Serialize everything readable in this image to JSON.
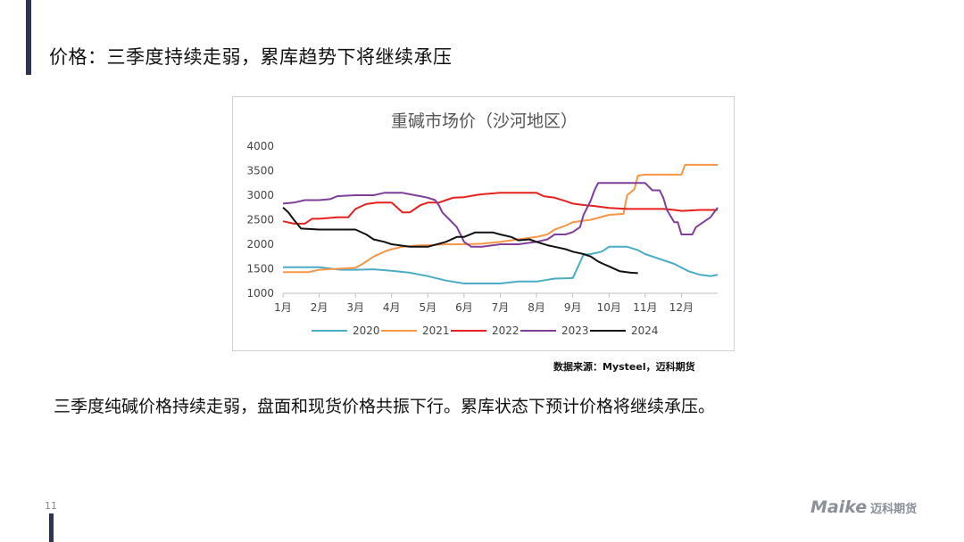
{
  "slide": {
    "title": "价格：三季度持续走弱，累库趋势下将继续承压",
    "body": "三季度纯碱价格持续走弱，盘面和现货价格共振下行。累库状态下预计价格将继续承压。",
    "source": "数据来源：Mysteel，迈科期货",
    "page_number": "11",
    "accent_color": "#2e3552"
  },
  "logo": {
    "word": "Maike",
    "chinese": "迈科期货",
    "icon": "maike-logo-icon"
  },
  "chart_data": {
    "type": "line",
    "title": "重碱市场价（沙河地区）",
    "x_ticks": [
      "1月",
      "2月",
      "3月",
      "4月",
      "5月",
      "6月",
      "7月",
      "8月",
      "9月",
      "10月",
      "11月",
      "12月"
    ],
    "y_ticks": [
      1000,
      1500,
      2000,
      2500,
      3000,
      3500,
      4000
    ],
    "ylim": [
      1000,
      4000
    ],
    "xlim": [
      1,
      13
    ],
    "grid": false,
    "legend_position": "bottom",
    "series": [
      {
        "name": "2020",
        "color": "#4bacc6",
        "points": [
          [
            1,
            1530
          ],
          [
            2,
            1530
          ],
          [
            2.6,
            1480
          ],
          [
            3,
            1480
          ],
          [
            3.5,
            1490
          ],
          [
            4,
            1460
          ],
          [
            4.5,
            1420
          ],
          [
            5,
            1350
          ],
          [
            5.5,
            1260
          ],
          [
            6,
            1200
          ],
          [
            6.5,
            1200
          ],
          [
            7,
            1200
          ],
          [
            7.5,
            1240
          ],
          [
            8,
            1240
          ],
          [
            8.5,
            1300
          ],
          [
            9,
            1310
          ],
          [
            9.3,
            1790
          ],
          [
            9.5,
            1800
          ],
          [
            9.8,
            1850
          ],
          [
            10,
            1950
          ],
          [
            10.5,
            1950
          ],
          [
            10.8,
            1880
          ],
          [
            11,
            1800
          ],
          [
            11.4,
            1700
          ],
          [
            11.8,
            1600
          ],
          [
            12.2,
            1450
          ],
          [
            12.5,
            1380
          ],
          [
            12.8,
            1350
          ],
          [
            13,
            1380
          ]
        ]
      },
      {
        "name": "2021",
        "color": "#f79646",
        "points": [
          [
            1,
            1430
          ],
          [
            1.7,
            1430
          ],
          [
            2,
            1480
          ],
          [
            2.5,
            1500
          ],
          [
            3,
            1520
          ],
          [
            3.2,
            1600
          ],
          [
            3.5,
            1750
          ],
          [
            3.8,
            1850
          ],
          [
            4,
            1900
          ],
          [
            4.3,
            1950
          ],
          [
            4.8,
            1980
          ],
          [
            5,
            1980
          ],
          [
            5.5,
            2000
          ],
          [
            6,
            2000
          ],
          [
            6.5,
            2010
          ],
          [
            7,
            2050
          ],
          [
            7.5,
            2100
          ],
          [
            8,
            2150
          ],
          [
            8.3,
            2200
          ],
          [
            8.5,
            2300
          ],
          [
            8.8,
            2380
          ],
          [
            9,
            2450
          ],
          [
            9.5,
            2500
          ],
          [
            10,
            2600
          ],
          [
            10.4,
            2620
          ],
          [
            10.5,
            3000
          ],
          [
            10.7,
            3120
          ],
          [
            10.8,
            3400
          ],
          [
            11,
            3420
          ],
          [
            11.5,
            3420
          ],
          [
            12,
            3420
          ],
          [
            12.1,
            3620
          ],
          [
            12.5,
            3620
          ],
          [
            13,
            3620
          ]
        ]
      },
      {
        "name": "2022",
        "color": "#e5211d",
        "points": [
          [
            1,
            2470
          ],
          [
            1.3,
            2420
          ],
          [
            1.6,
            2420
          ],
          [
            1.8,
            2520
          ],
          [
            2,
            2520
          ],
          [
            2.5,
            2550
          ],
          [
            2.8,
            2550
          ],
          [
            3,
            2720
          ],
          [
            3.3,
            2820
          ],
          [
            3.6,
            2850
          ],
          [
            4,
            2850
          ],
          [
            4.3,
            2650
          ],
          [
            4.5,
            2650
          ],
          [
            4.8,
            2800
          ],
          [
            5,
            2850
          ],
          [
            5.3,
            2850
          ],
          [
            5.5,
            2900
          ],
          [
            5.7,
            2950
          ],
          [
            6,
            2960
          ],
          [
            6.3,
            3000
          ],
          [
            6.5,
            3020
          ],
          [
            7,
            3050
          ],
          [
            7.5,
            3050
          ],
          [
            8,
            3050
          ],
          [
            8.2,
            2980
          ],
          [
            8.5,
            2950
          ],
          [
            8.8,
            2880
          ],
          [
            9,
            2830
          ],
          [
            9.3,
            2800
          ],
          [
            9.6,
            2780
          ],
          [
            10,
            2740
          ],
          [
            10.5,
            2720
          ],
          [
            11,
            2720
          ],
          [
            11.5,
            2720
          ],
          [
            11.8,
            2700
          ],
          [
            12,
            2680
          ],
          [
            12.5,
            2700
          ],
          [
            13,
            2700
          ]
        ]
      },
      {
        "name": "2023",
        "color": "#7f3f98",
        "points": [
          [
            1,
            2830
          ],
          [
            1.3,
            2850
          ],
          [
            1.6,
            2900
          ],
          [
            2,
            2900
          ],
          [
            2.3,
            2920
          ],
          [
            2.5,
            2980
          ],
          [
            3,
            3000
          ],
          [
            3.5,
            3000
          ],
          [
            3.8,
            3050
          ],
          [
            4,
            3050
          ],
          [
            4.3,
            3050
          ],
          [
            4.5,
            3020
          ],
          [
            4.8,
            2980
          ],
          [
            5,
            2950
          ],
          [
            5.2,
            2900
          ],
          [
            5.3,
            2800
          ],
          [
            5.4,
            2650
          ],
          [
            5.6,
            2500
          ],
          [
            5.8,
            2350
          ],
          [
            5.9,
            2200
          ],
          [
            6,
            2050
          ],
          [
            6.2,
            1950
          ],
          [
            6.5,
            1950
          ],
          [
            6.8,
            1980
          ],
          [
            7,
            2000
          ],
          [
            7.5,
            2000
          ],
          [
            8,
            2050
          ],
          [
            8.3,
            2100
          ],
          [
            8.5,
            2200
          ],
          [
            8.8,
            2200
          ],
          [
            9,
            2250
          ],
          [
            9.2,
            2350
          ],
          [
            9.3,
            2600
          ],
          [
            9.5,
            2900
          ],
          [
            9.6,
            3100
          ],
          [
            9.7,
            3250
          ],
          [
            10,
            3250
          ],
          [
            10.5,
            3250
          ],
          [
            11,
            3250
          ],
          [
            11.2,
            3100
          ],
          [
            11.4,
            3100
          ],
          [
            11.5,
            2950
          ],
          [
            11.6,
            2700
          ],
          [
            11.8,
            2450
          ],
          [
            11.9,
            2450
          ],
          [
            12,
            2200
          ],
          [
            12.3,
            2200
          ],
          [
            12.4,
            2350
          ],
          [
            12.6,
            2450
          ],
          [
            12.8,
            2550
          ],
          [
            13,
            2750
          ]
        ]
      },
      {
        "name": "2024",
        "color": "#111111",
        "points": [
          [
            1,
            2750
          ],
          [
            1.15,
            2650
          ],
          [
            1.3,
            2500
          ],
          [
            1.5,
            2320
          ],
          [
            2,
            2300
          ],
          [
            2.5,
            2300
          ],
          [
            3,
            2300
          ],
          [
            3.3,
            2200
          ],
          [
            3.5,
            2100
          ],
          [
            3.8,
            2050
          ],
          [
            4,
            2000
          ],
          [
            4.5,
            1950
          ],
          [
            5,
            1950
          ],
          [
            5.5,
            2050
          ],
          [
            5.8,
            2150
          ],
          [
            6,
            2150
          ],
          [
            6.3,
            2240
          ],
          [
            6.5,
            2240
          ],
          [
            6.8,
            2240
          ],
          [
            7,
            2200
          ],
          [
            7.3,
            2150
          ],
          [
            7.5,
            2080
          ],
          [
            7.8,
            2100
          ],
          [
            8,
            2050
          ],
          [
            8.3,
            1980
          ],
          [
            8.5,
            1950
          ],
          [
            8.8,
            1900
          ],
          [
            9,
            1850
          ],
          [
            9.3,
            1800
          ],
          [
            9.5,
            1750
          ],
          [
            9.7,
            1650
          ],
          [
            9.9,
            1580
          ],
          [
            10,
            1550
          ],
          [
            10.3,
            1450
          ],
          [
            10.6,
            1420
          ],
          [
            10.8,
            1410
          ]
        ]
      }
    ]
  }
}
